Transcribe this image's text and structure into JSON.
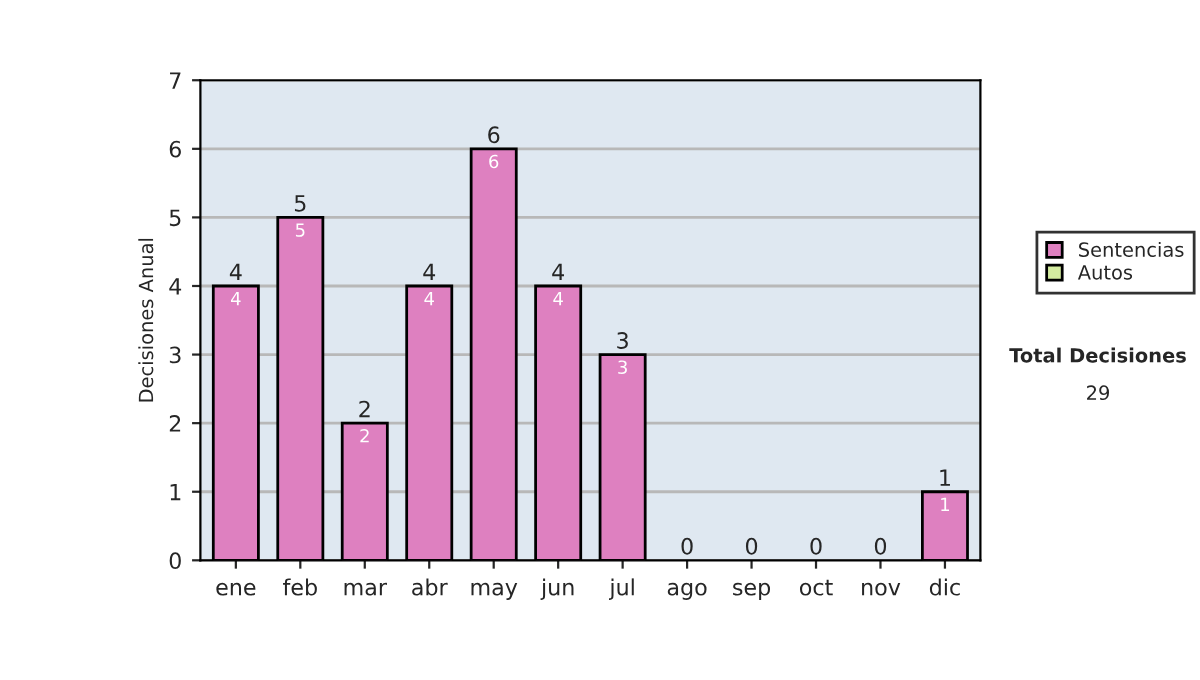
{
  "chart_data": {
    "type": "bar",
    "ylabel": "Decisiones Anual",
    "stacked": true,
    "categories": [
      "ene",
      "feb",
      "mar",
      "abr",
      "may",
      "jun",
      "jul",
      "ago",
      "sep",
      "oct",
      "nov",
      "dic"
    ],
    "series": [
      {
        "name": "Sentencias",
        "color": "#de80c0",
        "values": [
          4,
          5,
          2,
          4,
          6,
          4,
          3,
          0,
          0,
          0,
          0,
          1
        ],
        "value_labels": [
          "4",
          "5",
          "2",
          "4",
          "6",
          "4",
          "3",
          null,
          null,
          null,
          null,
          "1"
        ]
      },
      {
        "name": "Autos",
        "color": "#d4eca0",
        "values": [
          0,
          0,
          0,
          0,
          0,
          0,
          0,
          0,
          0,
          0,
          0,
          0
        ]
      }
    ],
    "totals": [
      "4",
      "5",
      "2",
      "4",
      "6",
      "4",
      "3",
      "0",
      "0",
      "0",
      "0",
      "1"
    ],
    "ylim": [
      0,
      7
    ],
    "yticks": [
      0,
      1,
      2,
      3,
      4,
      5,
      6,
      7
    ],
    "grid": "y",
    "legend": "right",
    "annotations": [
      "Total Decisiones",
      "29"
    ]
  }
}
